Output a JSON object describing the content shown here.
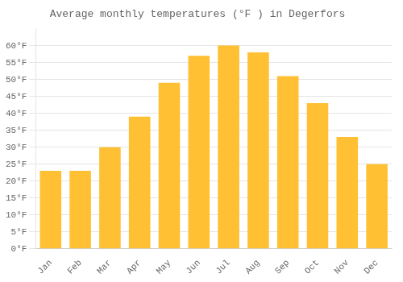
{
  "chart_data": {
    "type": "bar",
    "title": "Average monthly temperatures (°F ) in Degerfors",
    "categories": [
      "Jan",
      "Feb",
      "Mar",
      "Apr",
      "May",
      "Jun",
      "Jul",
      "Aug",
      "Sep",
      "Oct",
      "Nov",
      "Dec"
    ],
    "values": [
      23,
      23,
      30,
      39,
      49,
      57,
      60,
      58,
      51,
      43,
      33,
      25
    ],
    "color": "#FFC033",
    "ylim": [
      0,
      65
    ],
    "yticks": [
      {
        "value": 0,
        "label": "0°F"
      },
      {
        "value": 5,
        "label": "5°F"
      },
      {
        "value": 10,
        "label": "10°F"
      },
      {
        "value": 15,
        "label": "15°F"
      },
      {
        "value": 20,
        "label": "20°F"
      },
      {
        "value": 25,
        "label": "25°F"
      },
      {
        "value": 30,
        "label": "30°F"
      },
      {
        "value": 35,
        "label": "35°F"
      },
      {
        "value": 40,
        "label": "40°F"
      },
      {
        "value": 45,
        "label": "45°F"
      },
      {
        "value": 50,
        "label": "50°F"
      },
      {
        "value": 55,
        "label": "55°F"
      },
      {
        "value": 60,
        "label": "60°F"
      }
    ],
    "grid": true
  }
}
